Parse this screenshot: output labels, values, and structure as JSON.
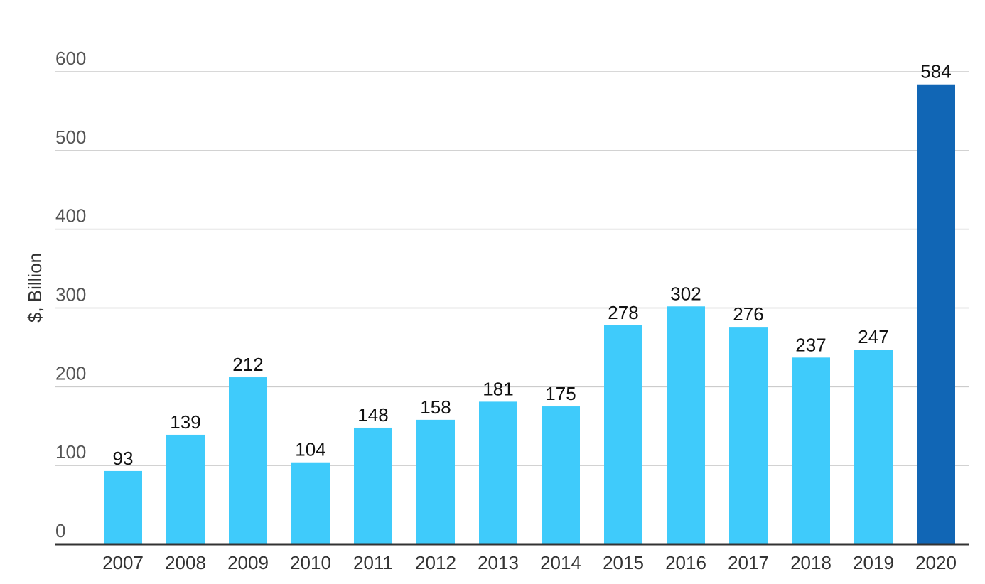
{
  "chart_data": {
    "type": "bar",
    "title": "",
    "xlabel": "",
    "ylabel": "$, Billion",
    "ylim": [
      0,
      600
    ],
    "yticks": [
      0,
      100,
      200,
      300,
      400,
      500,
      600
    ],
    "grid": true,
    "categories": [
      "2007",
      "2008",
      "2009",
      "2010",
      "2011",
      "2012",
      "2013",
      "2014",
      "2015",
      "2016",
      "2017",
      "2018",
      "2019",
      "2020"
    ],
    "series": [
      {
        "values": [
          93,
          139,
          212,
          104,
          148,
          158,
          181,
          175,
          278,
          302,
          276,
          237,
          247,
          584
        ]
      }
    ],
    "colors": {
      "default_bar": "#3fcbfb",
      "highlight_bar": "#1166b5",
      "grid": "#cccccc",
      "axis": "#333333"
    },
    "highlight_category": "2020"
  }
}
